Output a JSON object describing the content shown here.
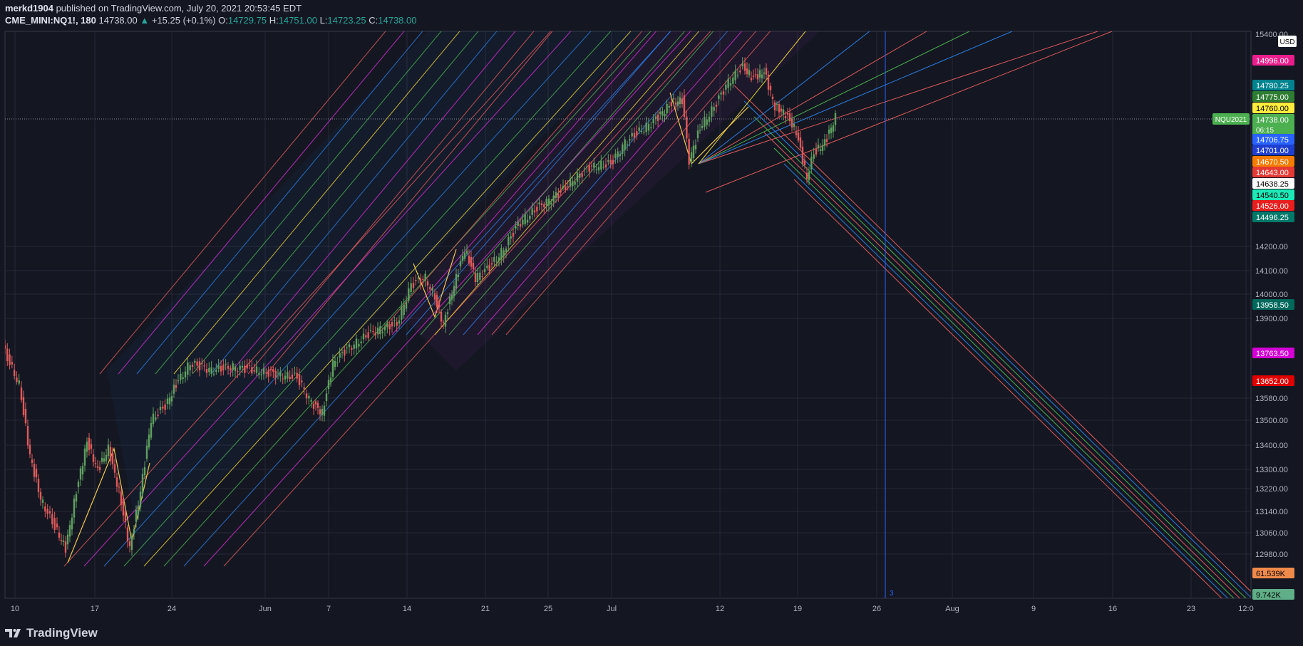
{
  "header": {
    "publisher": "merkd1904",
    "published_text": "published on TradingView.com, July 20, 2021 20:53:45 EDT",
    "symbol": "CME_MINI:NQ1!, 180",
    "last": "14738.00",
    "change_arrow": "▲",
    "change": "+15.25 (+0.1%)",
    "open_label": "O:",
    "open": "14729.75",
    "high_label": "H:",
    "high": "14751.00",
    "low_label": "L:",
    "low": "14723.25",
    "close_label": "C:",
    "close": "14738.00"
  },
  "colors": {
    "background": "#141722",
    "grid": "#262a37",
    "up_candle": "#5fa05f",
    "down_candle": "#e05a5a",
    "axis_text": "#b2b5be",
    "accent_blue": "#2962ff"
  },
  "price_axis": {
    "currency": "USD",
    "top_partial_label": "15400.00",
    "ticks": [
      {
        "value": 14200,
        "label": "14200.00"
      },
      {
        "value": 14100,
        "label": "14100.00"
      },
      {
        "value": 14000,
        "label": "14000.00"
      },
      {
        "value": 13900,
        "label": "13900.00"
      },
      {
        "value": 13580,
        "label": "13580.00"
      },
      {
        "value": 13500,
        "label": "13500.00"
      },
      {
        "value": 13400,
        "label": "13400.00"
      },
      {
        "value": 13300,
        "label": "13300.00"
      },
      {
        "value": 13220,
        "label": "13220.00"
      },
      {
        "value": 13140,
        "label": "13140.00"
      },
      {
        "value": 13060,
        "label": "13060.00"
      },
      {
        "value": 12980,
        "label": "12980.00"
      }
    ],
    "price_tags": [
      {
        "label": "14996.00",
        "bg": "#e91e8c",
        "fg": "#ffffff"
      },
      {
        "label": "14780.25",
        "bg": "#00838f",
        "fg": "#ffffff"
      },
      {
        "label": "14775.00",
        "bg": "#2e7d32",
        "fg": "#ffffff"
      },
      {
        "label": "14760.00",
        "bg": "#ffeb3b",
        "fg": "#000000"
      },
      {
        "label": "14738.00",
        "bg": "#4caf50",
        "fg": "#ffffff",
        "sub": "06:15"
      },
      {
        "label": "14706.75",
        "bg": "#2962ff",
        "fg": "#ffffff"
      },
      {
        "label": "14701.00",
        "bg": "#1e3fd0",
        "fg": "#ffffff"
      },
      {
        "label": "14670.50",
        "bg": "#f57c00",
        "fg": "#ffffff"
      },
      {
        "label": "14643.00",
        "bg": "#e53935",
        "fg": "#ffffff"
      },
      {
        "label": "14638.25",
        "bg": "#ffffff",
        "fg": "#000000"
      },
      {
        "label": "14540.50",
        "bg": "#1de9b6",
        "fg": "#000000"
      },
      {
        "label": "14526.00",
        "bg": "#e91e1e",
        "fg": "#ffffff"
      },
      {
        "label": "14496.25",
        "bg": "#00796b",
        "fg": "#ffffff"
      },
      {
        "label": "13958.50",
        "bg": "#00695c",
        "fg": "#ffffff"
      },
      {
        "label": "13763.50",
        "bg": "#d500d5",
        "fg": "#ffffff"
      },
      {
        "label": "13652.00",
        "bg": "#e00000",
        "fg": "#ffffff"
      },
      {
        "label": "61.539K",
        "bg": "#f08a4b",
        "fg": "#000000"
      },
      {
        "label": "9.742K",
        "bg": "#5fae87",
        "fg": "#000000"
      }
    ],
    "symbol_tag": "NQU2021"
  },
  "time_axis": {
    "labels": [
      "10",
      "17",
      "24",
      "Jun",
      "7",
      "14",
      "21",
      "25",
      "Jul",
      "12",
      "19",
      "26",
      "Aug",
      "9",
      "16",
      "23",
      "12:0"
    ]
  },
  "vertical_marker_label": "3",
  "footer": {
    "brand": "TradingView"
  }
}
